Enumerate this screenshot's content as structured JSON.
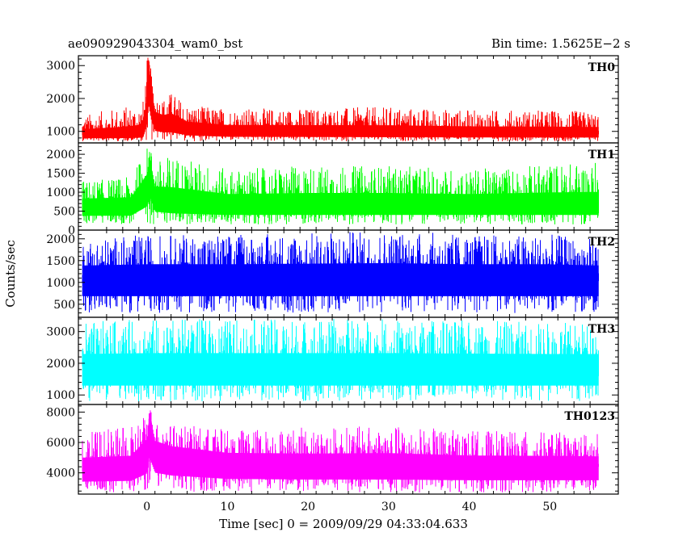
{
  "header": {
    "title": "ae090929043304_wam0_bst",
    "bin_time": "Bin time: 1.5625E−2 s"
  },
  "chart_data": {
    "type": "line",
    "title": "ae090929043304_wam0_bst",
    "subtitle": "Bin time: 1.5625E−2 s",
    "xlabel": "Time [sec] 0 = 2009/09/29 04:33:04.633",
    "ylabel": "Counts/sec",
    "xlim": [
      -8.5,
      58.5
    ],
    "x_ticks": [
      0,
      10,
      20,
      30,
      40,
      50
    ],
    "x_data_range": [
      -8,
      56
    ],
    "grid": false,
    "panels": [
      {
        "name": "TH0",
        "color": "#ff0000",
        "ylim": [
          650,
          3300
        ],
        "y_ticks": [
          1000,
          2000,
          3000
        ],
        "x": [
          -8,
          -4,
          -2,
          -0.5,
          0,
          0.2,
          0.5,
          1,
          2,
          3,
          5,
          10,
          20,
          30,
          40,
          50,
          56
        ],
        "y_baseline": [
          900,
          900,
          920,
          950,
          1800,
          3100,
          2200,
          1400,
          1300,
          1300,
          1100,
          1000,
          990,
          970,
          960,
          950,
          950
        ],
        "y_high": [
          1500,
          1700,
          1800,
          1900,
          3200,
          3300,
          2800,
          2100,
          2000,
          2200,
          1800,
          1700,
          1700,
          1750,
          1650,
          1650,
          1600
        ],
        "y_low": [
          700,
          700,
          700,
          700,
          700,
          700,
          700,
          700,
          700,
          700,
          700,
          700,
          700,
          700,
          700,
          700,
          700
        ]
      },
      {
        "name": "TH1",
        "color": "#00ff00",
        "ylim": [
          0,
          2300
        ],
        "y_ticks": [
          0,
          500,
          1000,
          1500,
          2000
        ],
        "x": [
          -8,
          -2,
          0,
          0.3,
          1,
          3,
          10,
          20,
          30,
          40,
          50,
          56
        ],
        "y_baseline": [
          650,
          660,
          1200,
          1800,
          900,
          800,
          700,
          700,
          700,
          700,
          700,
          700
        ],
        "y_high": [
          1300,
          1400,
          2200,
          2250,
          1800,
          2000,
          1600,
          1700,
          1700,
          1600,
          1750,
          1800
        ],
        "y_low": [
          150,
          150,
          150,
          150,
          150,
          150,
          150,
          150,
          150,
          150,
          150,
          150
        ]
      },
      {
        "name": "TH2",
        "color": "#0000ff",
        "ylim": [
          200,
          2200
        ],
        "y_ticks": [
          500,
          1000,
          1500,
          2000
        ],
        "x": [
          -8,
          0,
          10,
          20,
          30,
          40,
          50,
          56
        ],
        "y_baseline": [
          1150,
          1150,
          1150,
          1150,
          1150,
          1150,
          1150,
          1150
        ],
        "y_high": [
          2000,
          2100,
          2100,
          2150,
          2200,
          2100,
          2100,
          2000
        ],
        "y_low": [
          300,
          300,
          300,
          300,
          300,
          300,
          300,
          300
        ]
      },
      {
        "name": "TH3",
        "color": "#00ffff",
        "ylim": [
          700,
          3450
        ],
        "y_ticks": [
          1000,
          2000,
          3000
        ],
        "x": [
          -8,
          0,
          10,
          20,
          30,
          40,
          50,
          56
        ],
        "y_baseline": [
          1900,
          1900,
          1900,
          1900,
          1900,
          1900,
          1900,
          1900
        ],
        "y_high": [
          3300,
          3400,
          3400,
          3400,
          3400,
          3350,
          3300,
          3300
        ],
        "y_low": [
          800,
          800,
          800,
          800,
          800,
          800,
          800,
          800
        ]
      },
      {
        "name": "TH0123",
        "color": "#ff00ff",
        "ylim": [
          2600,
          8500
        ],
        "y_ticks": [
          4000,
          6000,
          8000
        ],
        "x": [
          -8,
          -2,
          0,
          0.3,
          1,
          3,
          10,
          20,
          30,
          40,
          50,
          56
        ],
        "y_baseline": [
          4300,
          4400,
          5500,
          7800,
          5600,
          5200,
          4700,
          4600,
          4600,
          4500,
          4500,
          4500
        ],
        "y_high": [
          6800,
          7000,
          8200,
          8500,
          7400,
          7200,
          6900,
          7000,
          7100,
          6800,
          6700,
          6600
        ],
        "y_low": [
          2700,
          2700,
          2700,
          2700,
          2700,
          2700,
          2700,
          2700,
          2700,
          2700,
          2700,
          2700
        ]
      }
    ]
  }
}
